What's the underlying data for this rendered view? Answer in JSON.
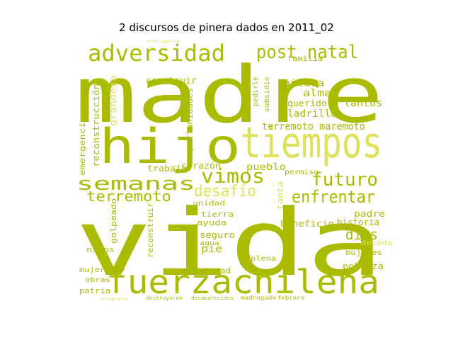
{
  "chart_data": {
    "type": "wordcloud",
    "title": "2 discursos de pinera dados en 2011_02",
    "colors": {
      "dark": "#aabb00",
      "mid": "#bfcc1a",
      "light": "#dde25a",
      "pale": "#eef08a"
    },
    "words": [
      {
        "text": "madre",
        "weight": 100,
        "shade": "dark"
      },
      {
        "text": "vida",
        "weight": 98,
        "shade": "dark"
      },
      {
        "text": "fuerzachilena",
        "weight": 62,
        "shade": "dark"
      },
      {
        "text": "hijo",
        "weight": 55,
        "shade": "dark"
      },
      {
        "text": "tiempos",
        "weight": 50,
        "shade": "light"
      },
      {
        "text": "adversidad",
        "weight": 30,
        "shade": "dark"
      },
      {
        "text": "post natal",
        "weight": 28,
        "shade": "dark"
      },
      {
        "text": "semanas",
        "weight": 24,
        "shade": "dark"
      },
      {
        "text": "vimos",
        "weight": 24,
        "shade": "dark"
      },
      {
        "text": "futuro",
        "weight": 22,
        "shade": "dark"
      },
      {
        "text": "enfrentar",
        "weight": 20,
        "shade": "dark"
      },
      {
        "text": "terremoto",
        "weight": 20,
        "shade": "dark"
      },
      {
        "text": "desafío",
        "weight": 18,
        "shade": "light"
      },
      {
        "text": "dios",
        "weight": 16,
        "shade": "dark"
      },
      {
        "text": "terremoto maremoto",
        "weight": 13,
        "shade": "dark"
      },
      {
        "text": "ladrillo",
        "weight": 13,
        "shade": "dark"
      },
      {
        "text": "tantos",
        "weight": 12,
        "shade": "dark"
      },
      {
        "text": "piedra",
        "weight": 11,
        "shade": "dark"
      },
      {
        "text": "alma",
        "weight": 11,
        "shade": "dark"
      },
      {
        "text": "querido",
        "weight": 10,
        "shade": "dark"
      },
      {
        "text": "construir",
        "weight": 10,
        "shade": "dark"
      },
      {
        "text": "oportunidades",
        "weight": 10,
        "shade": "dark"
      },
      {
        "text": "reconstrucción",
        "weight": 10,
        "shade": "dark"
      },
      {
        "text": "grandeza",
        "weight": 9,
        "shade": "light"
      },
      {
        "text": "emergencia",
        "weight": 9,
        "shade": "dark"
      },
      {
        "text": "pueblo",
        "weight": 10,
        "shade": "dark"
      },
      {
        "text": "corazón",
        "weight": 10,
        "shade": "dark"
      },
      {
        "text": "trabajo",
        "weight": 10,
        "shade": "dark"
      },
      {
        "text": "historia",
        "weight": 10,
        "shade": "dark"
      },
      {
        "text": "padre",
        "weight": 10,
        "shade": "dark"
      },
      {
        "text": "beneficio",
        "weight": 10,
        "shade": "dark"
      },
      {
        "text": "mujeres",
        "weight": 10,
        "shade": "dark"
      },
      {
        "text": "pobreza",
        "weight": 10,
        "shade": "dark"
      },
      {
        "text": "tierra",
        "weight": 10,
        "shade": "dark"
      },
      {
        "text": "ayuda",
        "weight": 10,
        "shade": "dark"
      },
      {
        "text": "seguro",
        "weight": 10,
        "shade": "dark"
      },
      {
        "text": "unidad",
        "weight": 9,
        "shade": "dark"
      },
      {
        "text": "pie",
        "weight": 12,
        "shade": "dark"
      },
      {
        "text": "reconstruir",
        "weight": 10,
        "shade": "dark"
      },
      {
        "text": "golpeado",
        "weight": 9,
        "shade": "dark"
      },
      {
        "text": "niños",
        "weight": 9,
        "shade": "dark"
      },
      {
        "text": "mujer",
        "weight": 9,
        "shade": "dark"
      },
      {
        "text": "obras",
        "weight": 9,
        "shade": "dark"
      },
      {
        "text": "patria",
        "weight": 9,
        "shade": "dark"
      },
      {
        "text": "sociedad",
        "weight": 9,
        "shade": "dark"
      },
      {
        "text": "plena",
        "weight": 9,
        "shade": "dark"
      },
      {
        "text": "familia",
        "weight": 9,
        "shade": "dark"
      },
      {
        "text": "agua",
        "weight": 8,
        "shade": "dark"
      },
      {
        "text": "tanta",
        "weight": 10,
        "shade": "light"
      },
      {
        "text": "decada",
        "weight": 8,
        "shade": "light"
      },
      {
        "text": "permiso",
        "weight": 8,
        "shade": "dark"
      },
      {
        "text": "subsidio",
        "weight": 8,
        "shade": "dark"
      },
      {
        "text": "pedirle",
        "weight": 8,
        "shade": "dark"
      },
      {
        "text": "madrugada",
        "weight": 6,
        "shade": "dark"
      },
      {
        "text": "febrero",
        "weight": 6,
        "shade": "dark"
      },
      {
        "text": "desaparecidos",
        "weight": 5,
        "shade": "dark"
      },
      {
        "text": "destruyeron",
        "weight": 5,
        "shade": "dark"
      },
      {
        "text": "integrarse",
        "weight": 5,
        "shade": "light"
      },
      {
        "text": "inteligencia",
        "weight": 5,
        "shade": "light"
      }
    ]
  }
}
